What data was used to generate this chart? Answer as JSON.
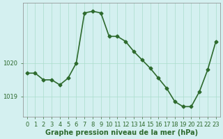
{
  "x": [
    0,
    1,
    2,
    3,
    4,
    5,
    6,
    7,
    8,
    9,
    10,
    11,
    12,
    13,
    14,
    15,
    16,
    17,
    18,
    19,
    20,
    21,
    22,
    23
  ],
  "y": [
    1019.7,
    1019.7,
    1019.5,
    1019.5,
    1019.35,
    1019.55,
    1020.0,
    1021.5,
    1021.55,
    1021.5,
    1020.8,
    1020.8,
    1020.65,
    1020.35,
    1020.1,
    1019.85,
    1019.55,
    1019.25,
    1018.85,
    1018.7,
    1018.7,
    1019.15,
    1019.8,
    1020.65
  ],
  "line_color": "#2d6a2d",
  "marker": "D",
  "markersize": 2.5,
  "bg_color": "#d4f0f0",
  "grid_color": "#aaddcc",
  "xlabel": "Graphe pression niveau de la mer (hPa)",
  "xlabel_fontsize": 7,
  "tick_fontsize": 6,
  "yticks": [
    1019,
    1020
  ],
  "ylim": [
    1018.4,
    1021.8
  ],
  "xlim": [
    -0.5,
    23.5
  ],
  "linewidth": 1.2,
  "spine_color": "#888888",
  "xtick_labels": [
    "0",
    "1",
    "2",
    "3",
    "4",
    "5",
    "6",
    "7",
    "8",
    "9",
    "10",
    "11",
    "12",
    "13",
    "14",
    "15",
    "16",
    "17",
    "18",
    "19",
    "20",
    "21",
    "22",
    "23"
  ]
}
